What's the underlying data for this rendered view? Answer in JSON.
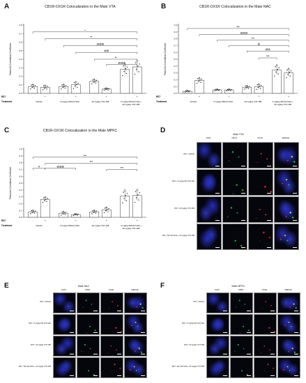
{
  "panels": {
    "A": {
      "letter": "A",
      "title": "CB1R-OX1R Colocalization in the Male VTA"
    },
    "B": {
      "letter": "B",
      "title": "CB1R-OX1R Colocalization in the Male NAC"
    },
    "C": {
      "letter": "C",
      "title": "CB1R-OX1R Colocalization in the Male MPFC"
    },
    "D": {
      "letter": "D",
      "title": "Male VTA"
    },
    "E": {
      "letter": "E",
      "title": "Male NAC"
    },
    "F": {
      "letter": "F",
      "title": "Male MPFC"
    }
  },
  "common": {
    "ylabel": "Pearson's Correlation Coefficient",
    "rs7_label": "RS7",
    "treatment_label": "Treatment",
    "rs7_values": [
      "-",
      "+",
      "-",
      "+",
      "-",
      "+",
      "-",
      "+"
    ],
    "treatments": [
      "Vehicle",
      "3 mg/kg SR141716A",
      "40 mg/kg YNT-185",
      "3 mg/kg SR141716A +\n40 mg/kg YNT-185"
    ]
  },
  "chart_data": [
    {
      "type": "bar",
      "title": "CB1R-OX1R Colocalization in the Male VTA",
      "ylabel": "Pearson's Correlation Coefficient",
      "ylim": [
        0,
        0.8
      ],
      "yticks": [
        "0.0",
        "0.1",
        "0.2",
        "0.3",
        "0.4",
        "0.5",
        "0.6",
        "0.7",
        "0.8"
      ],
      "values": [
        0.08,
        0.07,
        0.08,
        0.1,
        0.14,
        0.05,
        0.28,
        0.31
      ],
      "errors": [
        0.02,
        0.02,
        0.02,
        0.03,
        0.02,
        0.01,
        0.05,
        0.06
      ],
      "brackets": [
        {
          "from": 0,
          "to": 7,
          "level": 0.72,
          "label": "*"
        },
        {
          "from": 1,
          "to": 7,
          "level": 0.64,
          "label": "**"
        },
        {
          "from": 2,
          "to": 7,
          "level": 0.56,
          "label": "@@@"
        },
        {
          "from": 3,
          "to": 7,
          "level": 0.48,
          "label": "@@"
        },
        {
          "from": 4,
          "to": 7,
          "level": 0.4,
          "label": "**"
        },
        {
          "from": 5,
          "to": 7,
          "level": 0.34,
          "label": "@@@"
        }
      ]
    },
    {
      "type": "bar",
      "title": "CB1R-OX1R Colocalization in the Male NAC",
      "ylabel": "Pearson's Correlation Coefficient",
      "ylim": [
        0,
        1.0
      ],
      "yticks": [
        "0.0",
        "0.1",
        "0.2",
        "0.3",
        "0.4",
        "0.5",
        "0.6",
        "0.7",
        "0.8",
        "0.9",
        "1.0"
      ],
      "values": [
        0.03,
        0.19,
        0.05,
        0.05,
        0.09,
        0.1,
        0.34,
        0.3
      ],
      "errors": [
        0.01,
        0.03,
        0.01,
        0.01,
        0.02,
        0.03,
        0.06,
        0.05
      ],
      "brackets": [
        {
          "from": 0,
          "to": 7,
          "level": 0.95,
          "label": "***"
        },
        {
          "from": 1,
          "to": 7,
          "level": 0.86,
          "label": "@@@"
        },
        {
          "from": 2,
          "to": 7,
          "level": 0.78,
          "label": "***"
        },
        {
          "from": 3,
          "to": 7,
          "level": 0.7,
          "label": "@"
        },
        {
          "from": 4,
          "to": 7,
          "level": 0.62,
          "label": "@@"
        },
        {
          "from": 5,
          "to": 6,
          "level": 0.52,
          "label": "***"
        }
      ]
    },
    {
      "type": "bar",
      "title": "CB1R-OX1R Colocalization in the Male MPFC",
      "ylabel": "Pearson's Correlation Coefficient",
      "ylim": [
        0,
        1.0
      ],
      "yticks": [
        "0.0",
        "0.1",
        "0.2",
        "0.3",
        "0.4",
        "0.5",
        "0.6",
        "0.7",
        "0.8",
        "0.9",
        "1.0"
      ],
      "values": [
        0.08,
        0.26,
        0.06,
        0.04,
        0.08,
        0.11,
        0.31,
        0.32
      ],
      "errors": [
        0.02,
        0.03,
        0.02,
        0.01,
        0.02,
        0.03,
        0.07,
        0.07
      ],
      "brackets": [
        {
          "from": 0,
          "to": 7,
          "level": 0.88,
          "label": "***"
        },
        {
          "from": 1,
          "to": 7,
          "level": 0.79,
          "label": "***"
        },
        {
          "from": 0,
          "to": 1,
          "level": 0.72,
          "label": "#"
        },
        {
          "from": 1,
          "to": 3,
          "level": 0.72,
          "label": "@@@"
        },
        {
          "from": 5,
          "to": 7,
          "level": 0.7,
          "label": "***"
        }
      ]
    }
  ],
  "micro": {
    "columns": [
      "DAPI",
      "CB1R",
      "OX1R",
      "MERGE"
    ],
    "rows": [
      "RS7 / Vehicle",
      "RS7 / 3 mg/kg SR 141716A",
      "RS7 / 40 mg/kg YNT-185",
      "RS7 / SR 141716A + 40 mg/kg YNT-185"
    ]
  }
}
